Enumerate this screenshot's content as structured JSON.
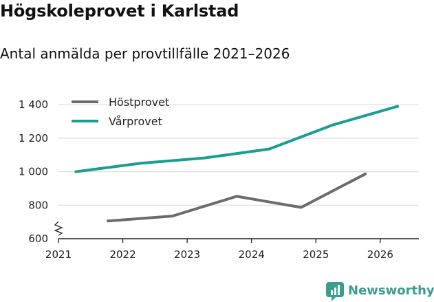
{
  "chart_data": {
    "type": "line",
    "title": "Högskoleprovet i Karlstad",
    "subtitle": "Antal anmälda per provtillfälle 2021–2026",
    "xlabel": "",
    "ylabel": "",
    "x_ticks": [
      "2021",
      "2022",
      "2023",
      "2024",
      "2025",
      "2026"
    ],
    "y_ticks": [
      "600",
      "800",
      "1 000",
      "1 200",
      "1 400"
    ],
    "xlim": [
      2021,
      2026.6
    ],
    "ylim": [
      600,
      1450
    ],
    "grid": true,
    "legend_position": "top-left",
    "series": [
      {
        "name": "Höstprovet",
        "color": "#6b6b6b",
        "x": [
          2021.77,
          2022.77,
          2023.77,
          2024.77,
          2025.77
        ],
        "y": [
          706,
          735,
          853,
          787,
          987
        ]
      },
      {
        "name": "Vårprovet",
        "color": "#1a9e93",
        "x": [
          2021.27,
          2022.27,
          2023.27,
          2024.27,
          2025.27,
          2026.27
        ],
        "y": [
          1000,
          1050,
          1082,
          1135,
          1280,
          1390
        ]
      }
    ]
  },
  "branding": {
    "name": "Newsworthy",
    "logo_color": "#3b9d8d"
  }
}
